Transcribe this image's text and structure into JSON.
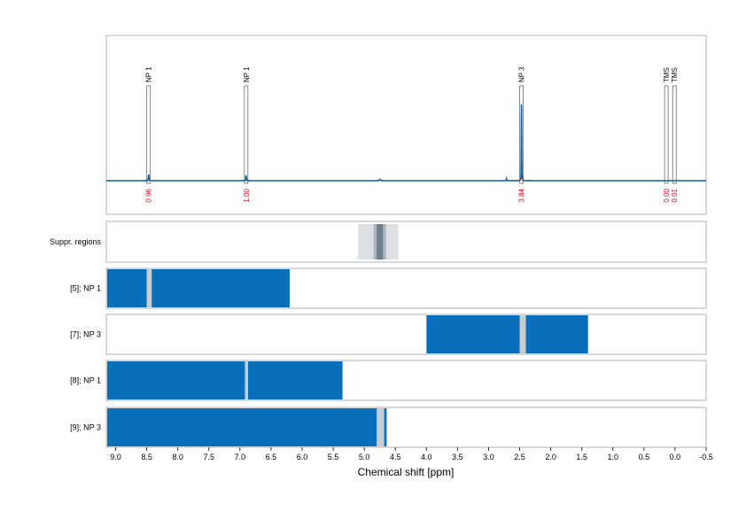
{
  "chart_data": {
    "type": "line",
    "xlabel": "Chemical shift [ppm]",
    "x_axis": {
      "reversed": true,
      "range": [
        9.15,
        -0.5
      ],
      "ticks": [
        "9.0",
        "8.5",
        "8.0",
        "7.5",
        "7.0",
        "6.5",
        "6.0",
        "5.5",
        "5.0",
        "4.5",
        "4.0",
        "3.5",
        "3.0",
        "2.5",
        "2.0",
        "1.5",
        "1.0",
        "0.5",
        "0.0",
        "-0.5"
      ],
      "tick_values": [
        9.0,
        8.5,
        8.0,
        7.5,
        7.0,
        6.5,
        6.0,
        5.5,
        5.0,
        4.5,
        4.0,
        3.5,
        3.0,
        2.5,
        2.0,
        1.5,
        1.0,
        0.5,
        0.0,
        -0.5
      ]
    },
    "spectrum": {
      "color": "#0a64a4",
      "peaks": [
        {
          "x": 8.47,
          "height": 0.14,
          "width": 0.015
        },
        {
          "x": 6.9,
          "height": 0.15,
          "width": 0.015
        },
        {
          "x": 2.71,
          "height": 0.05,
          "width": 0.012
        },
        {
          "x": 2.47,
          "height": 1.0,
          "width": 0.012
        },
        {
          "x": 4.75,
          "height": 0.015,
          "width": 0.05
        }
      ],
      "annotations": [
        {
          "label": "NP 1",
          "x": 8.47,
          "integral": "0.96"
        },
        {
          "label": "NP 1",
          "x": 6.9,
          "integral": "1.00"
        },
        {
          "label": "NP 3",
          "x": 2.47,
          "integral": "3.84"
        },
        {
          "label": "TMS",
          "x": 0.14,
          "integral": "0.00"
        },
        {
          "label": "TMS",
          "x": 0.01,
          "integral": "0.01"
        }
      ]
    },
    "suppression": {
      "label": "Suppr. regions",
      "outer": [
        5.1,
        4.45
      ],
      "middle": [
        4.85,
        4.65
      ],
      "inner": [
        4.8,
        4.7
      ]
    },
    "bands": [
      {
        "label": "[5]; NP 1",
        "segments": [
          [
            9.15,
            8.5
          ],
          [
            8.42,
            6.2
          ]
        ],
        "marker": [
          8.5,
          8.42
        ]
      },
      {
        "label": "[7]; NP 3",
        "segments": [
          [
            4.0,
            2.5
          ],
          [
            2.4,
            1.4
          ]
        ],
        "marker": [
          2.5,
          2.4
        ]
      },
      {
        "label": "[8]; NP 1",
        "segments": [
          [
            9.15,
            6.92
          ],
          [
            6.87,
            5.35
          ]
        ],
        "marker": [
          6.92,
          6.87
        ]
      },
      {
        "label": "[9]; NP 3",
        "segments": [
          [
            9.15,
            4.8
          ],
          [
            4.68,
            4.64
          ]
        ],
        "marker": [
          4.8,
          4.68
        ]
      }
    ],
    "colors": {
      "band": "#0a6fba",
      "marker": "#c8cdd2",
      "supp_outer": "#dce0e4",
      "supp_middle": "#a9b4bd",
      "supp_inner": "#6e7f8c",
      "annotation_text": "#d0021b",
      "frame": "#b0b0b0",
      "grid": "#c8c8c8"
    }
  }
}
